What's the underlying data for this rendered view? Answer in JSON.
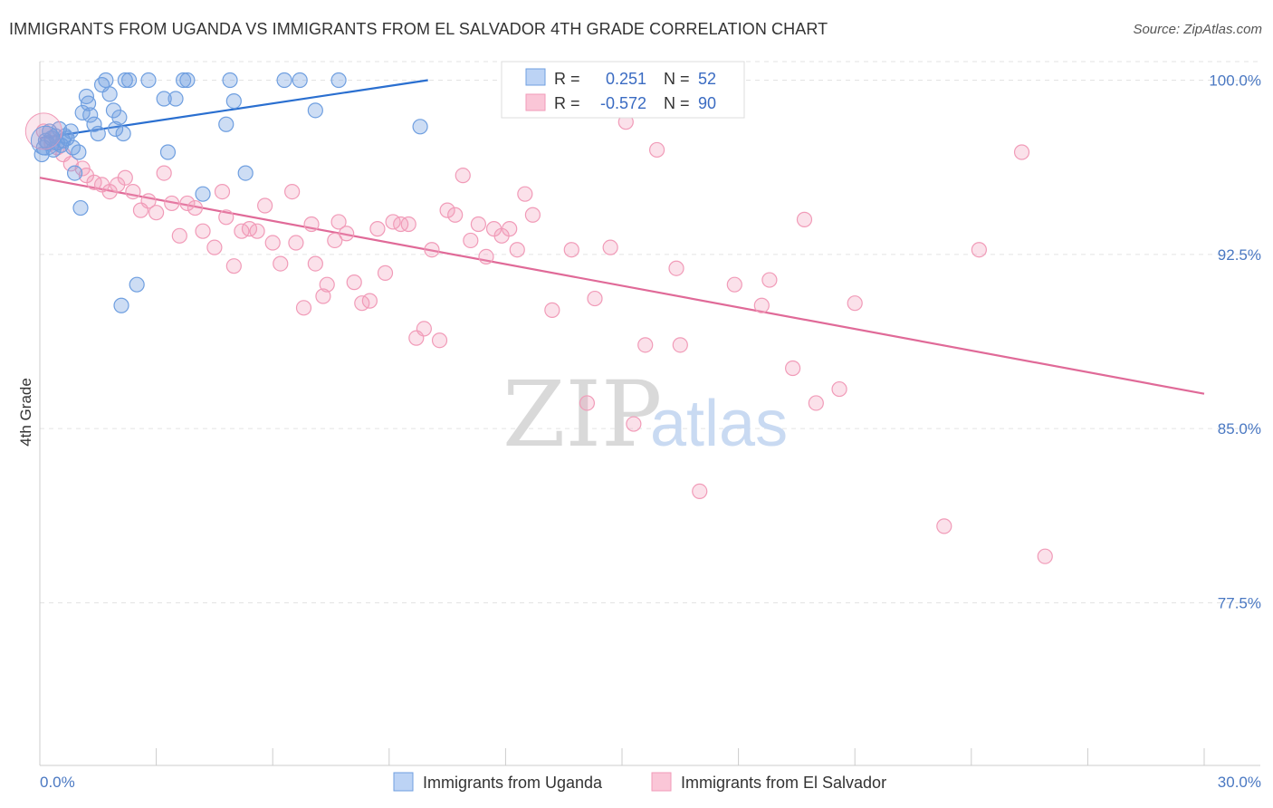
{
  "title": "IMMIGRANTS FROM UGANDA VS IMMIGRANTS FROM EL SALVADOR 4TH GRADE CORRELATION CHART",
  "source": "Source: ZipAtlas.com",
  "watermark": {
    "zip": "ZIP",
    "atlas": "atlas"
  },
  "colors": {
    "blue": "#6f9fe0",
    "blue_line": "#2a6fd0",
    "pink": "#f19bb8",
    "pink_line": "#e06a98",
    "tick": "#4a78c2"
  },
  "legend": {
    "r_label": "R =",
    "n_label": "N =",
    "rows": [
      {
        "r": "0.251",
        "n": "52"
      },
      {
        "r": "-0.572",
        "n": "90"
      }
    ]
  },
  "chart_data": {
    "type": "scatter",
    "title": "IMMIGRANTS FROM UGANDA VS IMMIGRANTS FROM EL SALVADOR 4TH GRADE CORRELATION CHART",
    "xlabel": "",
    "ylabel": "4th Grade",
    "xlim": [
      0,
      30
    ],
    "ylim": [
      70.5,
      100.8
    ],
    "x_tick_labels": [
      "0.0%",
      "30.0%"
    ],
    "y_ticks": [
      77.5,
      85.0,
      92.5,
      100.0
    ],
    "y_tick_labels": [
      "77.5%",
      "85.0%",
      "92.5%",
      "100.0%"
    ],
    "grid": true,
    "legend_position": "top-center",
    "series": [
      {
        "name": "Immigrants from Uganda",
        "color": "#6f9fe0",
        "r": 0.251,
        "n": 52,
        "trend": {
          "x": [
            0.0,
            10.0
          ],
          "y": [
            97.5,
            100.0
          ]
        },
        "points": [
          [
            0.1,
            97.1
          ],
          [
            0.15,
            97.4
          ],
          [
            0.2,
            97.3
          ],
          [
            0.25,
            97.8
          ],
          [
            0.3,
            97.5
          ],
          [
            0.35,
            97.0
          ],
          [
            0.4,
            97.6
          ],
          [
            0.45,
            97.3
          ],
          [
            0.5,
            97.9
          ],
          [
            0.55,
            97.2
          ],
          [
            0.6,
            97.4
          ],
          [
            0.65,
            97.6
          ],
          [
            0.7,
            97.5
          ],
          [
            0.8,
            97.8
          ],
          [
            0.85,
            97.1
          ],
          [
            0.9,
            96.0
          ],
          [
            1.0,
            96.9
          ],
          [
            1.05,
            94.5
          ],
          [
            1.1,
            98.6
          ],
          [
            1.2,
            99.3
          ],
          [
            1.25,
            99.0
          ],
          [
            1.3,
            98.5
          ],
          [
            1.4,
            98.1
          ],
          [
            1.5,
            97.7
          ],
          [
            1.6,
            99.8
          ],
          [
            1.7,
            100.0
          ],
          [
            1.8,
            99.4
          ],
          [
            1.9,
            98.7
          ],
          [
            1.95,
            97.9
          ],
          [
            2.05,
            98.4
          ],
          [
            2.15,
            97.7
          ],
          [
            2.2,
            100.0
          ],
          [
            2.3,
            100.0
          ],
          [
            2.5,
            91.2
          ],
          [
            2.1,
            90.3
          ],
          [
            2.8,
            100.0
          ],
          [
            3.2,
            99.2
          ],
          [
            3.3,
            96.9
          ],
          [
            3.5,
            99.2
          ],
          [
            3.7,
            100.0
          ],
          [
            3.8,
            100.0
          ],
          [
            4.2,
            95.1
          ],
          [
            4.8,
            98.1
          ],
          [
            4.9,
            100.0
          ],
          [
            5.0,
            99.1
          ],
          [
            5.3,
            96.0
          ],
          [
            6.3,
            100.0
          ],
          [
            6.7,
            100.0
          ],
          [
            7.1,
            98.7
          ],
          [
            7.7,
            100.0
          ],
          [
            9.8,
            98.0
          ],
          [
            0.05,
            96.8
          ]
        ]
      },
      {
        "name": "Immigrants from El Salvador",
        "color": "#f19bb8",
        "r": -0.572,
        "n": 90,
        "trend": {
          "x": [
            0.0,
            30.0
          ],
          "y": [
            95.8,
            86.5
          ]
        },
        "points": [
          [
            0.1,
            97.8
          ],
          [
            0.3,
            97.3
          ],
          [
            0.45,
            97.1
          ],
          [
            0.6,
            96.8
          ],
          [
            0.8,
            96.4
          ],
          [
            1.1,
            96.2
          ],
          [
            1.2,
            95.9
          ],
          [
            1.4,
            95.6
          ],
          [
            1.6,
            95.5
          ],
          [
            1.8,
            95.2
          ],
          [
            2.0,
            95.5
          ],
          [
            2.2,
            95.8
          ],
          [
            2.4,
            95.2
          ],
          [
            2.6,
            94.4
          ],
          [
            2.8,
            94.8
          ],
          [
            3.0,
            94.3
          ],
          [
            3.2,
            96.0
          ],
          [
            3.4,
            94.7
          ],
          [
            3.6,
            93.3
          ],
          [
            3.8,
            94.7
          ],
          [
            4.0,
            94.5
          ],
          [
            4.2,
            93.5
          ],
          [
            4.5,
            92.8
          ],
          [
            4.7,
            95.2
          ],
          [
            4.8,
            94.1
          ],
          [
            5.0,
            92.0
          ],
          [
            5.2,
            93.5
          ],
          [
            5.4,
            93.6
          ],
          [
            5.6,
            93.5
          ],
          [
            5.8,
            94.6
          ],
          [
            6.0,
            93.0
          ],
          [
            6.2,
            92.1
          ],
          [
            6.5,
            95.2
          ],
          [
            6.6,
            93.0
          ],
          [
            6.8,
            90.2
          ],
          [
            7.0,
            93.8
          ],
          [
            7.1,
            92.1
          ],
          [
            7.3,
            90.7
          ],
          [
            7.4,
            91.2
          ],
          [
            7.6,
            93.1
          ],
          [
            7.7,
            93.9
          ],
          [
            7.9,
            93.4
          ],
          [
            8.1,
            91.3
          ],
          [
            8.3,
            90.4
          ],
          [
            8.5,
            90.5
          ],
          [
            8.7,
            93.6
          ],
          [
            8.9,
            91.7
          ],
          [
            9.1,
            93.9
          ],
          [
            9.3,
            93.8
          ],
          [
            9.5,
            93.8
          ],
          [
            9.7,
            88.9
          ],
          [
            9.9,
            89.3
          ],
          [
            10.1,
            92.7
          ],
          [
            10.3,
            88.8
          ],
          [
            10.5,
            94.4
          ],
          [
            10.7,
            94.2
          ],
          [
            10.9,
            95.9
          ],
          [
            11.1,
            93.1
          ],
          [
            11.3,
            93.8
          ],
          [
            11.5,
            92.4
          ],
          [
            11.7,
            93.6
          ],
          [
            11.9,
            93.3
          ],
          [
            12.1,
            93.6
          ],
          [
            12.3,
            92.7
          ],
          [
            12.5,
            95.1
          ],
          [
            12.7,
            94.2
          ],
          [
            13.2,
            90.1
          ],
          [
            13.7,
            92.7
          ],
          [
            14.1,
            86.1
          ],
          [
            14.3,
            90.6
          ],
          [
            14.7,
            92.8
          ],
          [
            15.1,
            98.2
          ],
          [
            15.3,
            85.2
          ],
          [
            15.6,
            88.6
          ],
          [
            15.9,
            97.0
          ],
          [
            16.4,
            91.9
          ],
          [
            16.5,
            88.6
          ],
          [
            17.0,
            82.3
          ],
          [
            18.6,
            90.3
          ],
          [
            18.8,
            91.4
          ],
          [
            19.4,
            87.6
          ],
          [
            19.7,
            94.0
          ],
          [
            20.0,
            86.1
          ],
          [
            20.6,
            86.7
          ],
          [
            21.0,
            90.4
          ],
          [
            23.3,
            80.8
          ],
          [
            24.2,
            92.7
          ],
          [
            25.3,
            96.9
          ],
          [
            25.9,
            79.5
          ],
          [
            17.9,
            91.2
          ]
        ]
      }
    ]
  },
  "bottom_legend": [
    "Immigrants from Uganda",
    "Immigrants from El Salvador"
  ]
}
